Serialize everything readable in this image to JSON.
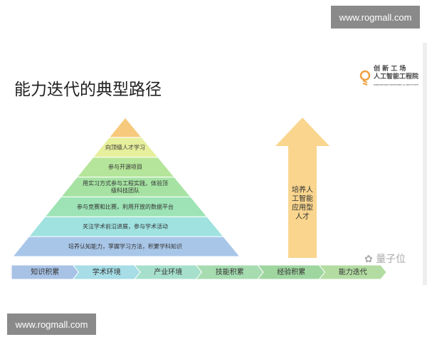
{
  "watermark_top": "www.rogmall.com",
  "watermark_bottom": "www.rogmall.com",
  "title": "能力迭代的典型路径",
  "logo": {
    "line1": "创 新 工 场",
    "line2": "人工智能工程院",
    "line3": "INNOVATION VENTURES AI INSTITUTE"
  },
  "pyramid": {
    "layers": [
      {
        "label": "",
        "color": "#f7c97c"
      },
      {
        "label": "向顶级人才学习",
        "color": "#e6ef9c"
      },
      {
        "label": "参与开源项目",
        "color": "#b5e59a"
      },
      {
        "label": "用实习方式参与工程实践，体验顶|级科技团队",
        "color": "#a6e3a3"
      },
      {
        "label": "参与竞赛和比赛，利用开放的数据平台",
        "color": "#9de3b5"
      },
      {
        "label": "关注学术前沿进展，参与学术活动",
        "color": "#9fe2e0"
      },
      {
        "label": "培养认知能力，掌握学习方法，积累学科知识",
        "color": "#a8c6e8"
      }
    ]
  },
  "arrow": {
    "label": "培养人|工智能|应用型|人才",
    "color": "#f9d58e"
  },
  "stages": [
    {
      "label": "知识积累",
      "color": "#a8c2e6"
    },
    {
      "label": "学术环境",
      "color": "#a6dde6"
    },
    {
      "label": "产业环境",
      "color": "#a6e0cc"
    },
    {
      "label": "技能积累",
      "color": "#a6dcb0"
    },
    {
      "label": "经验积累",
      "color": "#9fd6a0"
    },
    {
      "label": "能力迭代",
      "color": "#b3dca2"
    }
  ],
  "wechat": "量子位"
}
